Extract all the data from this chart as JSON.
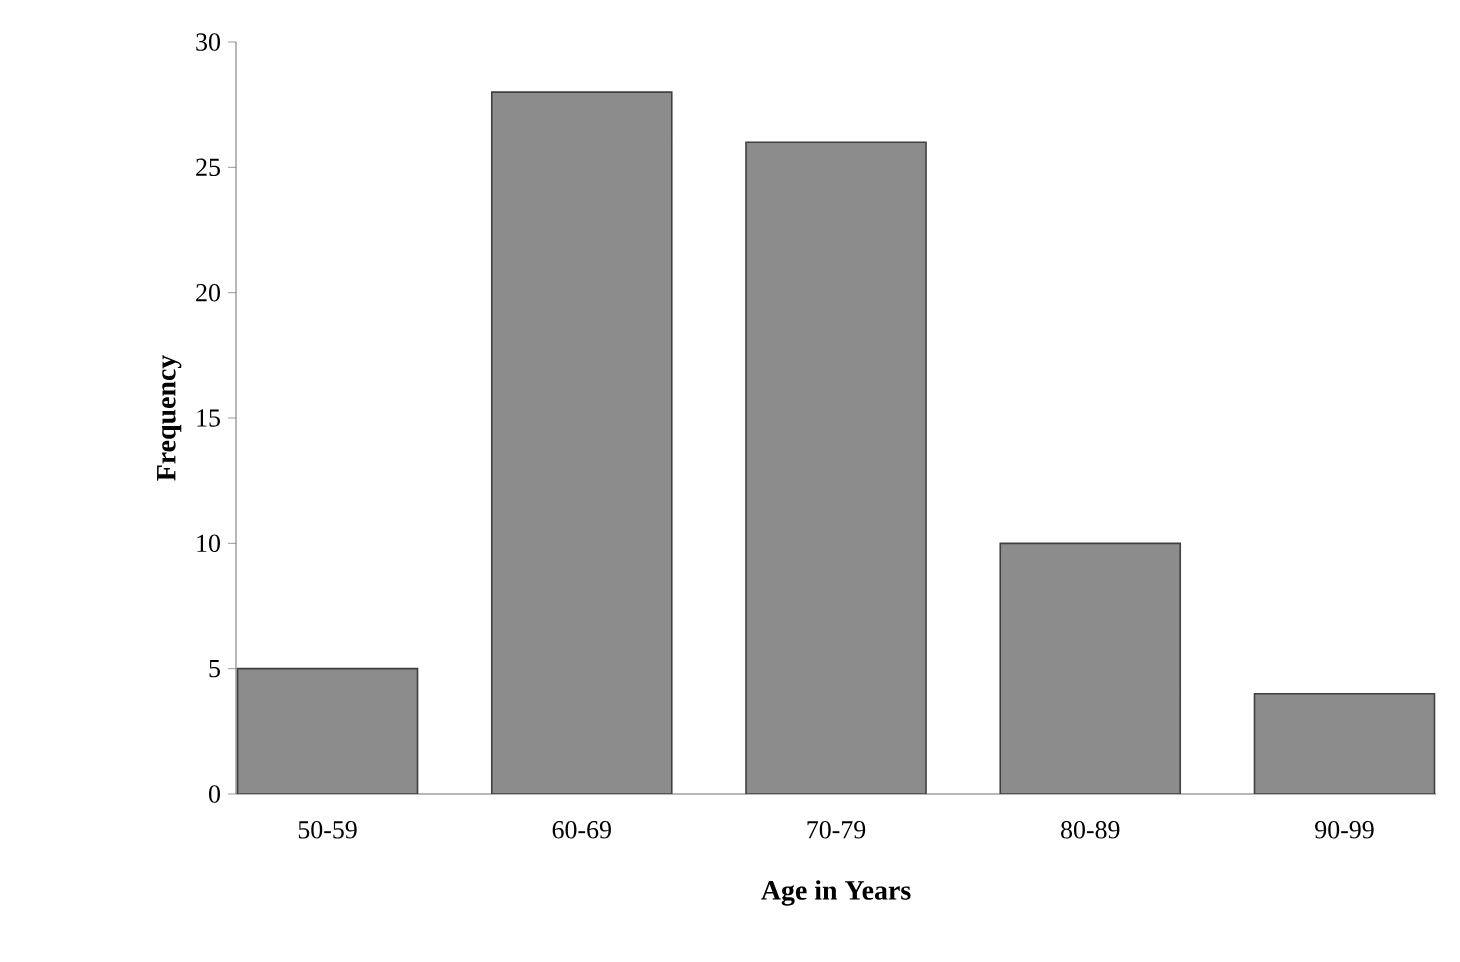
{
  "chart_data": {
    "type": "bar",
    "xlabel": "Age in Years",
    "ylabel": "Frequency",
    "categories": [
      "50-59",
      "60-69",
      "70-79",
      "80-89",
      "90-99"
    ],
    "values": [
      5,
      28,
      26,
      10,
      4
    ],
    "color": "#8c8c8c",
    "ylim": [
      0,
      30
    ],
    "yticks": [
      0,
      5,
      10,
      15,
      20,
      25,
      30
    ],
    "grid": false
  }
}
